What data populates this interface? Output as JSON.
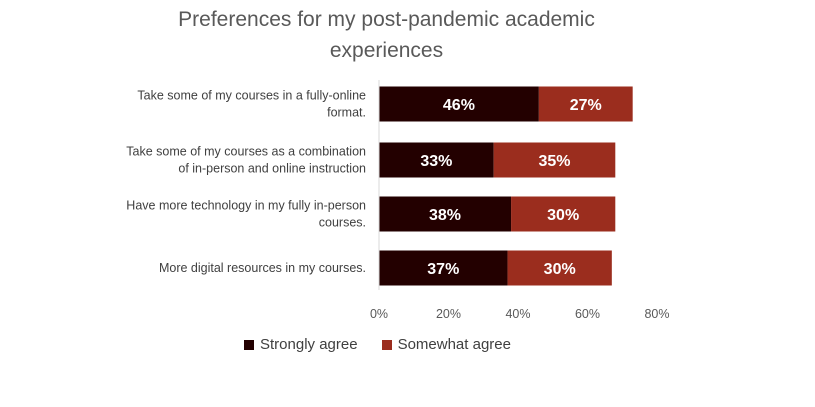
{
  "chart_data": {
    "type": "bar",
    "orientation": "horizontal",
    "stacked": true,
    "title_lines": [
      "Preferences for my post-pandemic academic",
      "experiences"
    ],
    "categories": [
      [
        "Take some of my courses in a fully-online",
        "format."
      ],
      [
        "Take some of my courses as a combination",
        "of in-person and online instruction"
      ],
      [
        "Have more technology in my fully in-person",
        "courses."
      ],
      [
        "More digital resources in my courses."
      ]
    ],
    "series": [
      {
        "name": "Strongly agree",
        "color": "#230000",
        "values": [
          46,
          33,
          38,
          37
        ],
        "labels": [
          "46%",
          "33%",
          "38%",
          "37%"
        ]
      },
      {
        "name": "Somewhat agree",
        "color": "#9b2d1e",
        "values": [
          27,
          35,
          30,
          30
        ],
        "labels": [
          "27%",
          "35%",
          "30%",
          "30%"
        ]
      }
    ],
    "xlim": [
      0,
      80
    ],
    "xticks": [
      0,
      20,
      40,
      60,
      80
    ],
    "xtick_labels": [
      "0%",
      "20%",
      "40%",
      "60%",
      "80%"
    ],
    "grid": false,
    "legend_position": "bottom"
  }
}
